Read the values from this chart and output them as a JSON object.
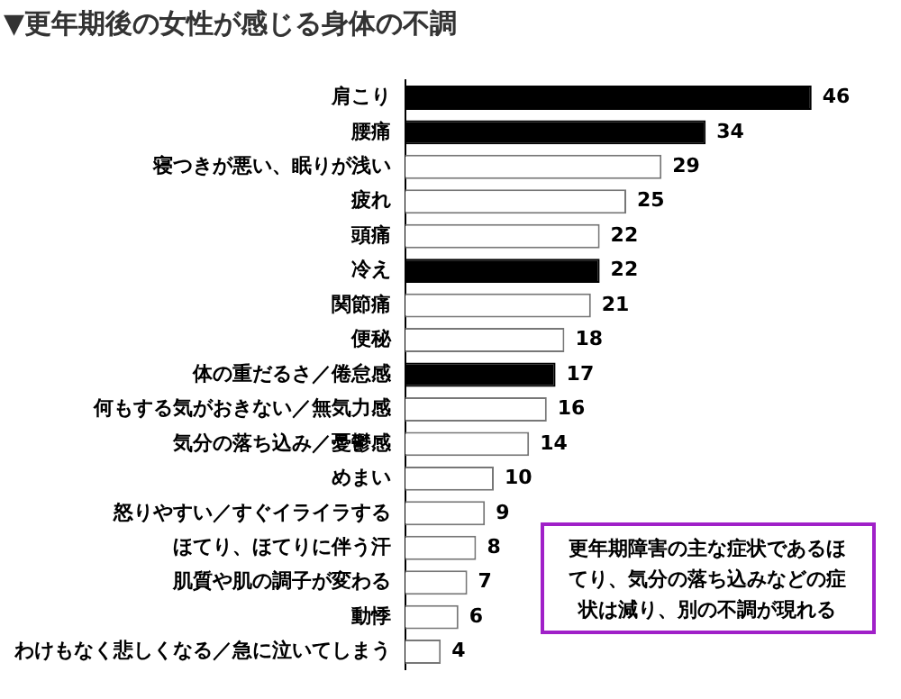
{
  "chart_data": {
    "type": "bar",
    "orientation": "horizontal",
    "title": "▼更年期後の女性が感じる身体の不調",
    "categories": [
      "肩こり",
      "腰痛",
      "寝つきが悪い、眠りが浅い",
      "疲れ",
      "頭痛",
      "冷え",
      "関節痛",
      "便秘",
      "体の重だるさ／倦怠感",
      "何もする気がおきない／無気力感",
      "気分の落ち込み／憂鬱感",
      "めまい",
      "怒りやすい／すぐイライラする",
      "ほてり、ほてりに伴う汗",
      "肌質や肌の調子が変わる",
      "動悸",
      "わけもなく悲しくなる／急に泣いてしまう"
    ],
    "values": [
      46,
      34,
      29,
      25,
      22,
      22,
      21,
      18,
      17,
      16,
      14,
      10,
      9,
      8,
      7,
      6,
      4
    ],
    "colors": [
      "#000000",
      "#000000",
      "#ffffff",
      "#ffffff",
      "#ffffff",
      "#000000",
      "#ffffff",
      "#ffffff",
      "#000000",
      "#ffffff",
      "#ffffff",
      "#ffffff",
      "#ffffff",
      "#ffffff",
      "#ffffff",
      "#ffffff",
      "#ffffff"
    ],
    "data_labels": true,
    "annotations": [
      "更年期障害の主な症状であるほてり、気分の落ち込みなどの症状は減り、別の不調が現れる"
    ]
  }
}
